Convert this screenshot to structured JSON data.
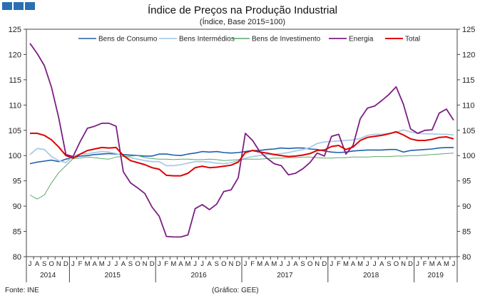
{
  "header": {
    "logo_color": "#2a6fb5"
  },
  "footer": {
    "source": "Fonte: INE",
    "credit": "(Gráfico: GEE)"
  },
  "chart_data": {
    "type": "line",
    "title": "Índice de Preços na Produção Industrial",
    "subtitle": "(Índice, Base 2015=100)",
    "ylim": [
      80,
      125
    ],
    "yticks": [
      80,
      85,
      90,
      95,
      100,
      105,
      110,
      115,
      120,
      125
    ],
    "grid": false,
    "legend_position": "top",
    "month_labels": [
      "J",
      "A",
      "S",
      "O",
      "N",
      "D",
      "J",
      "F",
      "M",
      "A",
      "M",
      "J",
      "J",
      "A",
      "S",
      "O",
      "N",
      "D",
      "J",
      "F",
      "M",
      "A",
      "M",
      "J",
      "J",
      "A",
      "S",
      "O",
      "N",
      "D",
      "J",
      "F",
      "M",
      "A",
      "M",
      "J",
      "J",
      "A",
      "S",
      "O",
      "N",
      "D",
      "J",
      "F",
      "M",
      "A",
      "M",
      "J",
      "J",
      "A",
      "S",
      "O",
      "N",
      "D",
      "J",
      "F",
      "M",
      "A",
      "M",
      "J"
    ],
    "years": [
      {
        "label": "2014",
        "start": 0,
        "end": 5
      },
      {
        "label": "2015",
        "start": 6,
        "end": 17
      },
      {
        "label": "2016",
        "start": 18,
        "end": 29
      },
      {
        "label": "2017",
        "start": 30,
        "end": 41
      },
      {
        "label": "2018",
        "start": 42,
        "end": 53
      },
      {
        "label": "2019",
        "start": 54,
        "end": 59
      }
    ],
    "series": [
      {
        "name": "Bens de Consumo",
        "color": "#1f5fa8",
        "width": 1.6,
        "values": [
          98.4,
          98.7,
          98.9,
          99.1,
          98.8,
          99.3,
          99.6,
          99.9,
          100.0,
          100.2,
          100.3,
          100.4,
          100.3,
          100.2,
          100.1,
          100.0,
          99.9,
          99.9,
          100.3,
          100.3,
          100.1,
          100.0,
          100.3,
          100.5,
          100.8,
          100.7,
          100.8,
          100.6,
          100.5,
          100.6,
          100.8,
          101.0,
          101.0,
          101.2,
          101.3,
          101.5,
          101.4,
          101.5,
          101.5,
          101.3,
          101.2,
          100.9,
          100.7,
          100.6,
          100.7,
          100.9,
          101.0,
          101.1,
          101.1,
          101.1,
          101.2,
          101.2,
          100.7,
          101.0,
          101.1,
          101.2,
          101.3,
          101.5,
          101.6,
          101.6
        ]
      },
      {
        "name": "Bens Intermédios",
        "color": "#a9cbe8",
        "width": 1.8,
        "values": [
          100.2,
          101.4,
          101.2,
          99.8,
          99.0,
          98.6,
          99.8,
          100.3,
          100.4,
          100.6,
          100.8,
          100.7,
          100.4,
          100.0,
          99.6,
          99.3,
          99.0,
          98.8,
          98.8,
          98.0,
          98.0,
          98.2,
          98.5,
          98.8,
          98.8,
          98.7,
          98.5,
          98.4,
          98.6,
          99.0,
          99.5,
          99.8,
          100.0,
          100.2,
          100.3,
          100.4,
          100.6,
          100.9,
          101.2,
          101.6,
          102.4,
          102.7,
          102.8,
          102.9,
          103.0,
          103.1,
          103.4,
          104.0,
          104.2,
          104.2,
          104.4,
          104.6,
          105.1,
          104.7,
          104.4,
          104.3,
          104.3,
          104.2,
          104.2,
          104.1
        ]
      },
      {
        "name": "Bens de Investimento",
        "color": "#5aa86a",
        "width": 1.0,
        "values": [
          92.2,
          91.4,
          92.2,
          94.6,
          96.6,
          98.0,
          99.4,
          99.5,
          99.7,
          99.6,
          99.4,
          99.3,
          99.7,
          99.8,
          99.9,
          100.0,
          99.6,
          99.4,
          99.3,
          99.3,
          99.2,
          99.3,
          99.3,
          99.2,
          99.2,
          99.3,
          99.2,
          99.0,
          99.1,
          99.2,
          99.3,
          99.3,
          99.3,
          99.4,
          99.5,
          99.5,
          99.6,
          99.6,
          99.7,
          99.7,
          99.6,
          99.5,
          99.5,
          99.6,
          99.6,
          99.7,
          99.7,
          99.7,
          99.8,
          99.8,
          99.8,
          99.9,
          99.9,
          100.0,
          100.0,
          100.1,
          100.2,
          100.3,
          100.4,
          100.5
        ]
      },
      {
        "name": "Energia",
        "color": "#7b1f83",
        "width": 1.8,
        "values": [
          122.2,
          120.2,
          117.8,
          113.5,
          107.5,
          100.2,
          99.8,
          102.8,
          105.4,
          105.8,
          106.4,
          106.4,
          105.8,
          96.8,
          94.6,
          93.6,
          92.5,
          89.8,
          88.0,
          84.0,
          83.9,
          83.9,
          84.3,
          89.5,
          90.3,
          89.3,
          90.4,
          92.9,
          93.2,
          95.6,
          104.4,
          103.0,
          100.8,
          99.5,
          98.4,
          98.0,
          96.2,
          96.5,
          97.4,
          98.6,
          100.5,
          99.9,
          103.8,
          104.2,
          100.3,
          102.0,
          107.3,
          109.4,
          109.8,
          110.9,
          112.1,
          113.6,
          110.2,
          105.3,
          104.4,
          105.0,
          105.1,
          108.4,
          109.2,
          107.0
        ]
      },
      {
        "name": "Total",
        "color": "#e00000",
        "width": 2.0,
        "values": [
          104.4,
          104.4,
          104.0,
          103.1,
          101.7,
          100.0,
          99.5,
          100.3,
          101.0,
          101.3,
          101.6,
          101.5,
          101.6,
          100.0,
          99.0,
          98.6,
          98.2,
          97.6,
          97.3,
          96.1,
          96.0,
          96.0,
          96.5,
          97.6,
          97.9,
          97.6,
          97.7,
          97.9,
          98.1,
          98.7,
          100.6,
          101.0,
          100.7,
          100.5,
          100.2,
          100.0,
          99.8,
          99.9,
          100.1,
          100.4,
          101.0,
          101.1,
          101.8,
          102.0,
          101.2,
          101.7,
          103.0,
          103.6,
          103.8,
          104.0,
          104.3,
          104.7,
          104.1,
          103.3,
          103.0,
          103.0,
          103.2,
          103.6,
          103.7,
          103.3
        ]
      }
    ]
  }
}
